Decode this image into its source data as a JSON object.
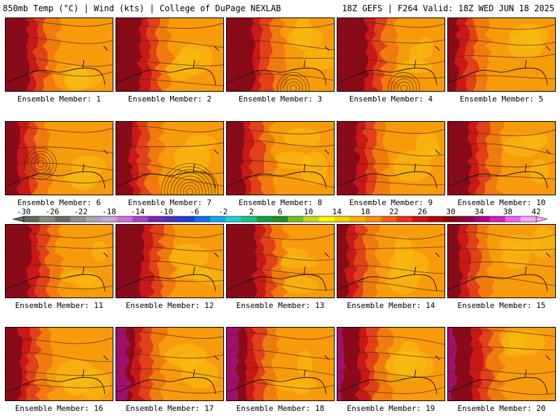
{
  "header": {
    "title_left": "850mb Temp (°C) | Wind (kts) | College of DuPage NEXLAB",
    "title_right": "18Z GEFS | F264 Valid: 18Z WED JUN 18 2025"
  },
  "members": [
    "Ensemble Member: 1",
    "Ensemble Member: 2",
    "Ensemble Member: 3",
    "Ensemble Member: 4",
    "Ensemble Member: 5",
    "Ensemble Member: 6",
    "Ensemble Member: 7",
    "Ensemble Member: 8",
    "Ensemble Member: 9",
    "Ensemble Member: 10",
    "Ensemble Member: 11",
    "Ensemble Member: 12",
    "Ensemble Member: 13",
    "Ensemble Member: 14",
    "Ensemble Member: 15",
    "Ensemble Member: 16",
    "Ensemble Member: 17",
    "Ensemble Member: 18",
    "Ensemble Member: 19",
    "Ensemble Member: 20"
  ],
  "colorbar": {
    "ticks": [
      "-30",
      "-26",
      "-22",
      "-18",
      "-14",
      "-10",
      "-6",
      "-2",
      "2",
      "6",
      "10",
      "14",
      "18",
      "22",
      "26",
      "30",
      "34",
      "38",
      "42"
    ],
    "colors": [
      "#5a6b5a",
      "#7f8f7f",
      "#6b6b6b",
      "#8f8f8f",
      "#a8a8b8",
      "#c8a8d8",
      "#d070e0",
      "#b040c8",
      "#7a2ab0",
      "#4a30c0",
      "#2040d8",
      "#1070e8",
      "#10a8f0",
      "#20d0d8",
      "#20c080",
      "#10a040",
      "#209020",
      "#70c020",
      "#c8d820",
      "#f8f800",
      "#f8d000",
      "#f8b000",
      "#f89010",
      "#f06010",
      "#e83010",
      "#d01010",
      "#b00808",
      "#8a0808",
      "#900040",
      "#b00080",
      "#d020c0",
      "#f060f0",
      "#f8a8f8"
    ]
  },
  "style": {
    "field_base": "#f79a0c",
    "warm_orange": "#f07a10",
    "hot_red": "#e0401a",
    "very_hot": "#c81818",
    "extreme": "#8a0a1a",
    "magenta": "#a0106a",
    "cool_yellow": "#f8c010"
  }
}
